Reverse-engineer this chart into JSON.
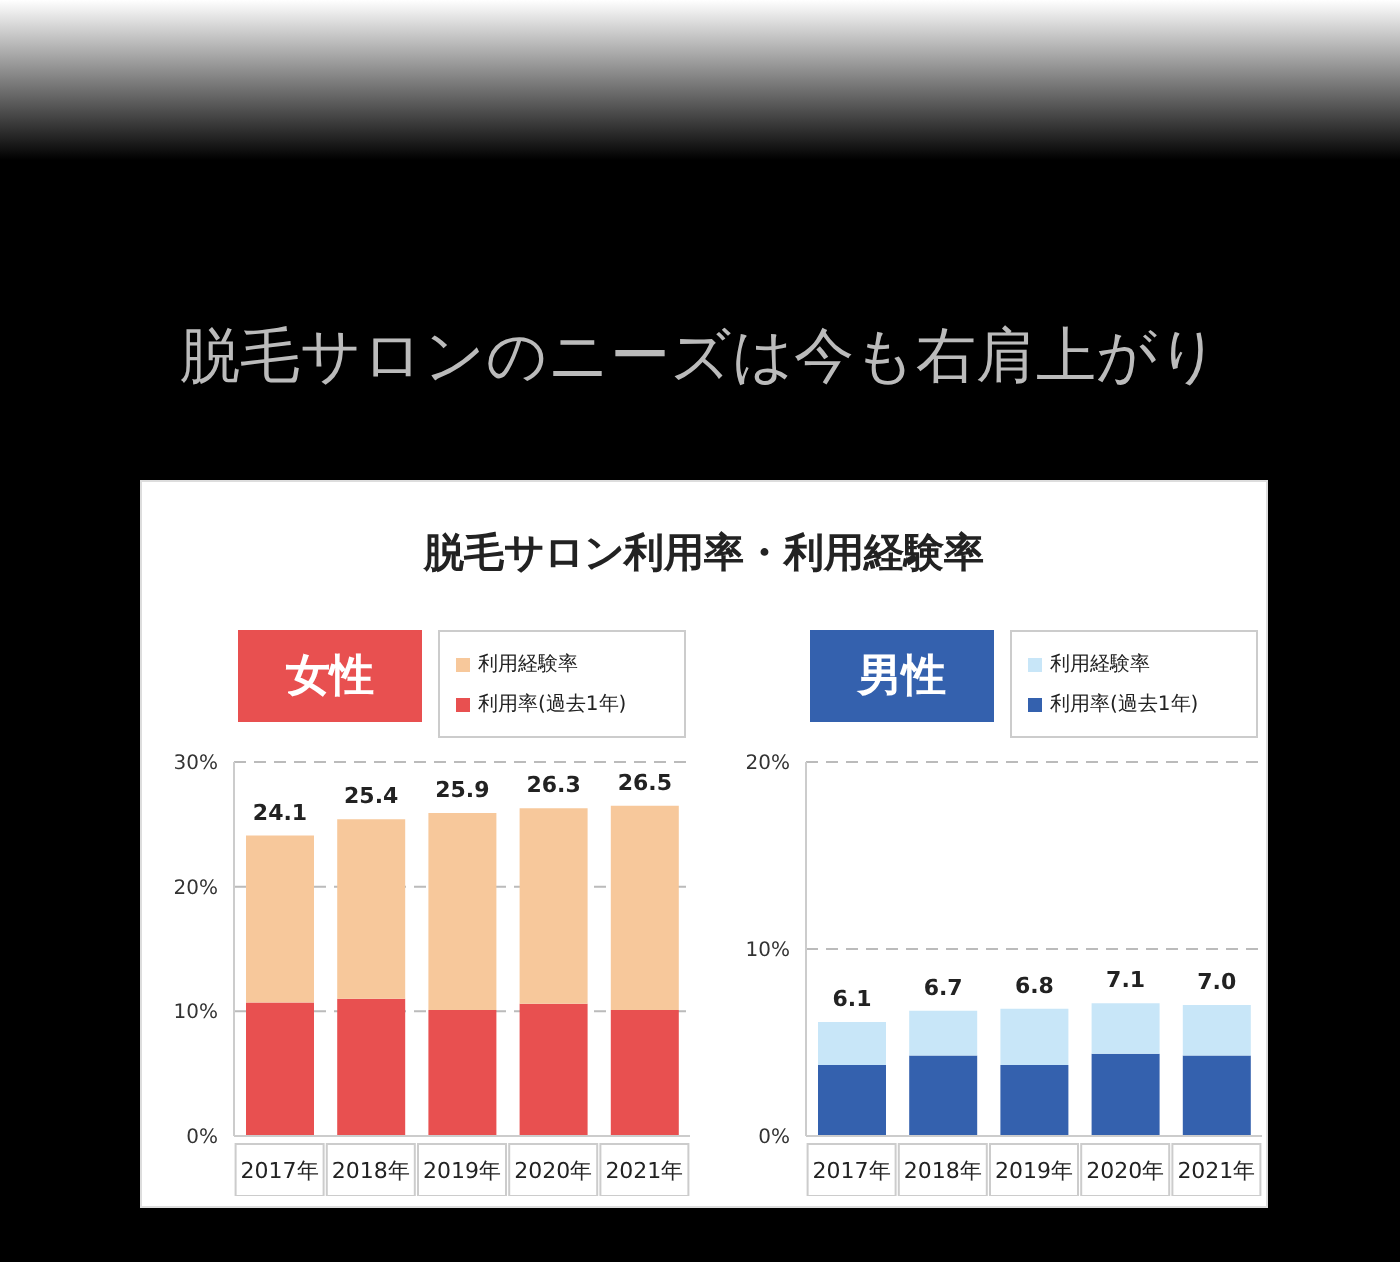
{
  "chart_data": [
    {
      "type": "bar",
      "stacked": true,
      "title": "女性",
      "annotations": [
        "脱毛サロンのニーズは今も右肩上がり",
        "脱毛サロン利用率・利用経験率"
      ],
      "categories": [
        "2017年",
        "2018年",
        "2019年",
        "2020年",
        "2021年"
      ],
      "series": [
        {
          "name": "利用率(過去1年)",
          "color": "#e85050",
          "values": [
            10.7,
            11.0,
            10.1,
            10.6,
            10.1
          ]
        },
        {
          "name": "利用経験率",
          "color": "#f7c89b",
          "values": [
            13.4,
            14.4,
            15.8,
            15.7,
            16.4
          ]
        }
      ],
      "totals": [
        "24.1",
        "25.4",
        "25.9",
        "26.3",
        "26.5"
      ],
      "ylim": [
        0,
        30
      ],
      "yticks": [
        {
          "value": 0,
          "label": "0%"
        },
        {
          "value": 10,
          "label": "10%"
        },
        {
          "value": 20,
          "label": "20%"
        },
        {
          "value": 30,
          "label": "30%"
        }
      ],
      "grid": "y",
      "legend": "top right"
    },
    {
      "type": "bar",
      "stacked": true,
      "title": "男性",
      "categories": [
        "2017年",
        "2018年",
        "2019年",
        "2020年",
        "2021年"
      ],
      "series": [
        {
          "name": "利用率(過去1年)",
          "color": "#3461ae",
          "values": [
            3.8,
            4.3,
            3.8,
            4.4,
            4.3
          ]
        },
        {
          "name": "利用経験率",
          "color": "#c8e6f8",
          "values": [
            2.3,
            2.4,
            3.0,
            2.7,
            2.7
          ]
        }
      ],
      "totals": [
        "6.1",
        "6.7",
        "6.8",
        "7.1",
        "7.0"
      ],
      "ylim": [
        0,
        20
      ],
      "yticks": [
        {
          "value": 0,
          "label": "0%"
        },
        {
          "value": 10,
          "label": "10%"
        },
        {
          "value": 20,
          "label": "20%"
        }
      ],
      "grid": "y",
      "legend": "top right"
    }
  ]
}
